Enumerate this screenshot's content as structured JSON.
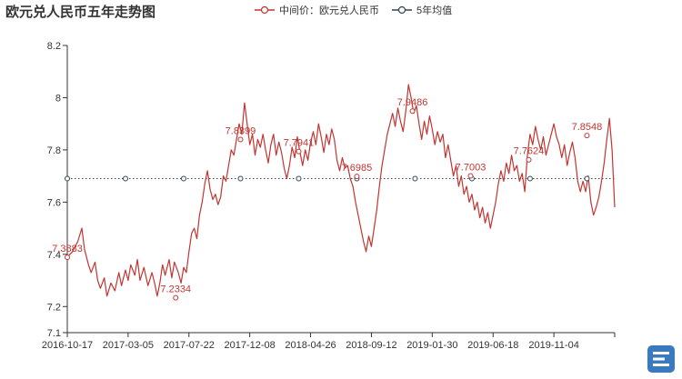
{
  "chart_data": {
    "type": "line",
    "title": "欧元兑人民币五年走势图",
    "ylim": [
      7.1,
      8.2
    ],
    "yticks": [
      7.1,
      7.2,
      7.4,
      7.6,
      7.8,
      8,
      8.2
    ],
    "xticks": [
      "2016-10-17",
      "2017-03-05",
      "2017-07-22",
      "2017-12-08",
      "2018-04-26",
      "2018-09-12",
      "2019-01-30",
      "2019-06-18",
      "2019-11-04"
    ],
    "grid": false,
    "legend_placement": "top-center",
    "series": [
      {
        "name": "中间价：欧元兑人民币",
        "color": "#c23531",
        "points": [
          [
            0,
            7.39
          ],
          [
            4,
            7.41
          ],
          [
            8,
            7.45
          ],
          [
            11,
            7.5
          ],
          [
            13,
            7.42
          ],
          [
            16,
            7.36
          ],
          [
            18,
            7.33
          ],
          [
            21,
            7.37
          ],
          [
            23,
            7.3
          ],
          [
            25,
            7.27
          ],
          [
            28,
            7.31
          ],
          [
            30,
            7.24
          ],
          [
            33,
            7.29
          ],
          [
            36,
            7.26
          ],
          [
            39,
            7.33
          ],
          [
            41,
            7.28
          ],
          [
            44,
            7.34
          ],
          [
            46,
            7.3
          ],
          [
            48,
            7.36
          ],
          [
            51,
            7.32
          ],
          [
            53,
            7.38
          ],
          [
            55,
            7.3
          ],
          [
            58,
            7.35
          ],
          [
            61,
            7.28
          ],
          [
            64,
            7.33
          ],
          [
            66,
            7.29
          ],
          [
            68,
            7.24
          ],
          [
            70,
            7.29
          ],
          [
            72,
            7.36
          ],
          [
            74,
            7.32
          ],
          [
            77,
            7.38
          ],
          [
            79,
            7.31
          ],
          [
            81,
            7.37
          ],
          [
            84,
            7.33
          ],
          [
            86,
            7.29
          ],
          [
            88,
            7.35
          ],
          [
            90,
            7.33
          ],
          [
            92,
            7.41
          ],
          [
            94,
            7.48
          ],
          [
            96,
            7.5
          ],
          [
            98,
            7.46
          ],
          [
            100,
            7.55
          ],
          [
            102,
            7.6
          ],
          [
            104,
            7.67
          ],
          [
            106,
            7.72
          ],
          [
            108,
            7.65
          ],
          [
            110,
            7.61
          ],
          [
            112,
            7.63
          ],
          [
            114,
            7.59
          ],
          [
            116,
            7.62
          ],
          [
            118,
            7.7
          ],
          [
            120,
            7.68
          ],
          [
            122,
            7.74
          ],
          [
            124,
            7.8
          ],
          [
            126,
            7.78
          ],
          [
            128,
            7.84
          ],
          [
            130,
            7.9
          ],
          [
            132,
            7.86
          ],
          [
            134,
            7.98
          ],
          [
            136,
            7.9
          ],
          [
            138,
            7.82
          ],
          [
            140,
            7.86
          ],
          [
            142,
            7.78
          ],
          [
            144,
            7.84
          ],
          [
            146,
            7.81
          ],
          [
            148,
            7.86
          ],
          [
            150,
            7.8
          ],
          [
            152,
            7.75
          ],
          [
            154,
            7.82
          ],
          [
            156,
            7.86
          ],
          [
            158,
            7.78
          ],
          [
            160,
            7.83
          ],
          [
            162,
            7.79
          ],
          [
            164,
            7.73
          ],
          [
            166,
            7.69
          ],
          [
            168,
            7.74
          ],
          [
            170,
            7.81
          ],
          [
            172,
            7.77
          ],
          [
            174,
            7.85
          ],
          [
            176,
            7.79
          ],
          [
            178,
            7.74
          ],
          [
            180,
            7.8
          ],
          [
            182,
            7.76
          ],
          [
            184,
            7.83
          ],
          [
            186,
            7.87
          ],
          [
            188,
            7.82
          ],
          [
            190,
            7.9
          ],
          [
            192,
            7.85
          ],
          [
            194,
            7.79
          ],
          [
            196,
            7.86
          ],
          [
            198,
            7.82
          ],
          [
            200,
            7.88
          ],
          [
            202,
            7.84
          ],
          [
            204,
            7.76
          ],
          [
            206,
            7.72
          ],
          [
            208,
            7.77
          ],
          [
            210,
            7.73
          ],
          [
            212,
            7.74
          ],
          [
            214,
            7.69
          ],
          [
            216,
            7.66
          ],
          [
            218,
            7.6
          ],
          [
            220,
            7.55
          ],
          [
            222,
            7.5
          ],
          [
            224,
            7.45
          ],
          [
            226,
            7.41
          ],
          [
            228,
            7.47
          ],
          [
            230,
            7.43
          ],
          [
            232,
            7.5
          ],
          [
            234,
            7.57
          ],
          [
            236,
            7.66
          ],
          [
            238,
            7.74
          ],
          [
            240,
            7.8
          ],
          [
            242,
            7.86
          ],
          [
            244,
            7.9
          ],
          [
            246,
            7.94
          ],
          [
            248,
            7.89
          ],
          [
            250,
            7.96
          ],
          [
            252,
            7.91
          ],
          [
            254,
            7.87
          ],
          [
            256,
            7.95
          ],
          [
            258,
            8.05
          ],
          [
            260,
            8.0
          ],
          [
            262,
            7.94
          ],
          [
            264,
            7.97
          ],
          [
            266,
            7.9
          ],
          [
            268,
            7.84
          ],
          [
            270,
            7.91
          ],
          [
            272,
            7.86
          ],
          [
            274,
            7.93
          ],
          [
            276,
            7.88
          ],
          [
            278,
            7.82
          ],
          [
            280,
            7.87
          ],
          [
            282,
            7.83
          ],
          [
            284,
            7.86
          ],
          [
            286,
            7.77
          ],
          [
            288,
            7.82
          ],
          [
            290,
            7.76
          ],
          [
            292,
            7.7
          ],
          [
            294,
            7.74
          ],
          [
            296,
            7.66
          ],
          [
            298,
            7.7
          ],
          [
            300,
            7.63
          ],
          [
            302,
            7.66
          ],
          [
            304,
            7.6
          ],
          [
            306,
            7.63
          ],
          [
            308,
            7.57
          ],
          [
            310,
            7.6
          ],
          [
            312,
            7.54
          ],
          [
            314,
            7.58
          ],
          [
            316,
            7.52
          ],
          [
            318,
            7.56
          ],
          [
            320,
            7.5
          ],
          [
            322,
            7.55
          ],
          [
            324,
            7.6
          ],
          [
            326,
            7.67
          ],
          [
            328,
            7.72
          ],
          [
            330,
            7.68
          ],
          [
            332,
            7.75
          ],
          [
            334,
            7.71
          ],
          [
            336,
            7.78
          ],
          [
            338,
            7.72
          ],
          [
            340,
            7.74
          ],
          [
            342,
            7.68
          ],
          [
            344,
            7.71
          ],
          [
            346,
            7.64
          ],
          [
            348,
            7.78
          ],
          [
            350,
            7.86
          ],
          [
            352,
            7.82
          ],
          [
            354,
            7.89
          ],
          [
            356,
            7.84
          ],
          [
            358,
            7.8
          ],
          [
            360,
            7.85
          ],
          [
            362,
            7.78
          ],
          [
            364,
            7.82
          ],
          [
            366,
            7.86
          ],
          [
            368,
            7.9
          ],
          [
            370,
            7.85
          ],
          [
            372,
            7.82
          ],
          [
            374,
            7.77
          ],
          [
            376,
            7.82
          ],
          [
            378,
            7.74
          ],
          [
            380,
            7.79
          ],
          [
            382,
            7.83
          ],
          [
            384,
            7.77
          ],
          [
            386,
            7.68
          ],
          [
            388,
            7.64
          ],
          [
            390,
            7.68
          ],
          [
            392,
            7.64
          ],
          [
            394,
            7.7
          ],
          [
            396,
            7.6
          ],
          [
            398,
            7.55
          ],
          [
            400,
            7.58
          ],
          [
            402,
            7.62
          ],
          [
            404,
            7.68
          ],
          [
            406,
            7.75
          ],
          [
            408,
            7.84
          ],
          [
            410,
            7.92
          ],
          [
            412,
            7.8
          ],
          [
            414,
            7.58
          ]
        ]
      },
      {
        "name": "5年均值",
        "color": "#2f4554",
        "value": 7.69
      }
    ],
    "annotations": [
      {
        "label": "7.3883",
        "x": 0,
        "y": 7.3883
      },
      {
        "label": "7.2334",
        "x": 82,
        "y": 7.2334
      },
      {
        "label": "7.8399",
        "x": 131,
        "y": 7.8399
      },
      {
        "label": "7.7941",
        "x": 175,
        "y": 7.7941
      },
      {
        "label": "7.6985",
        "x": 219,
        "y": 7.6985
      },
      {
        "label": "7.9486",
        "x": 261,
        "y": 7.9486
      },
      {
        "label": "7.7003",
        "x": 305,
        "y": 7.7003
      },
      {
        "label": "7.7624",
        "x": 349,
        "y": 7.7624
      },
      {
        "label": "7.8548",
        "x": 393,
        "y": 7.8548
      }
    ],
    "mean_markers": [
      0,
      44,
      88,
      131,
      175,
      219,
      263,
      306,
      350,
      393
    ]
  }
}
